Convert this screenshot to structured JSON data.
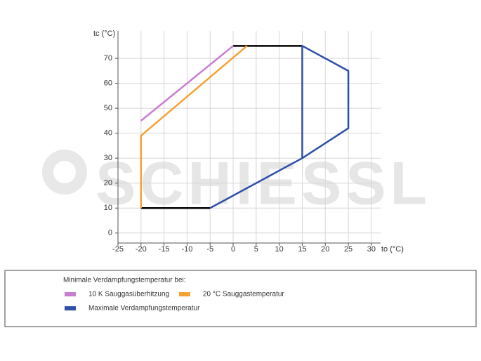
{
  "chart_data": {
    "type": "line",
    "x_label": "to (°C)",
    "y_label": "tc (°C)",
    "watermark": "SCHIESSL",
    "legend_title": "Minimale Verdampfungstemperatur bei:",
    "xlim": [
      -25,
      32
    ],
    "ylim": [
      -4,
      81
    ],
    "xticks": [
      -25,
      -20,
      -15,
      -10,
      -5,
      0,
      5,
      10,
      15,
      20,
      25,
      30
    ],
    "yticks": [
      0,
      10,
      20,
      30,
      40,
      50,
      60,
      70
    ],
    "grid": true,
    "series": [
      {
        "color": "#000000",
        "x": [
          -20,
          -5,
          null,
          0,
          15
        ],
        "values": [
          10,
          10,
          null,
          75,
          75
        ]
      },
      {
        "name": "10 K Sauggasüberhitzung",
        "color": "#c87dd0",
        "x": [
          -20,
          0
        ],
        "values": [
          45,
          75
        ]
      },
      {
        "name": "20 °C Sauggastemperatur",
        "color": "#f5a233",
        "x": [
          -20,
          -20,
          3
        ],
        "values": [
          10,
          39,
          75
        ]
      },
      {
        "name": "Maximale Verdampfungstemperatur",
        "color": "#2f4fa8",
        "x": [
          -5,
          15,
          25,
          25,
          15,
          15
        ],
        "values": [
          10,
          30,
          42,
          65,
          75,
          30
        ]
      }
    ]
  }
}
